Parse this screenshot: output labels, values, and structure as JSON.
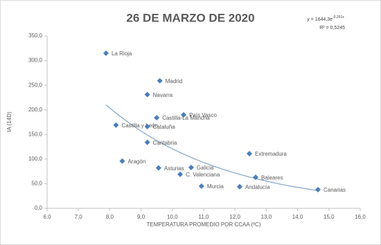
{
  "chart_data": {
    "type": "scatter",
    "title": "26 DE MARZO DE 2020",
    "x_label": "TEMPERATURA  PROMEDIO POR CCAA (ºC)",
    "y_label": "IA (14D)",
    "xlim": [
      6,
      16
    ],
    "ylim": [
      0,
      350
    ],
    "xticks": [
      {
        "value": 6,
        "label": "6,0"
      },
      {
        "value": 7,
        "label": "7,0"
      },
      {
        "value": 8,
        "label": "8,0"
      },
      {
        "value": 9,
        "label": "9,0"
      },
      {
        "value": 10,
        "label": "10,0"
      },
      {
        "value": 11,
        "label": "11,0"
      },
      {
        "value": 12,
        "label": "12,0"
      },
      {
        "value": 13,
        "label": "13,0"
      },
      {
        "value": 14,
        "label": "14,0"
      },
      {
        "value": 15,
        "label": "15,0"
      },
      {
        "value": 16,
        "label": "16,0"
      }
    ],
    "yticks": [
      {
        "value": 0,
        "label": "0,0"
      },
      {
        "value": 50,
        "label": "50,0"
      },
      {
        "value": 100,
        "label": "100,0"
      },
      {
        "value": 150,
        "label": "150,0"
      },
      {
        "value": 200,
        "label": "200,0"
      },
      {
        "value": 250,
        "label": "250,0"
      },
      {
        "value": 300,
        "label": "300,0"
      },
      {
        "value": 350,
        "label": "350,0"
      }
    ],
    "series": [
      {
        "color": "#4a7ebb",
        "x": [
          7.88,
          9.6,
          9.2,
          10.36,
          9.5,
          8.2,
          9.2,
          9.2,
          12.46,
          8.4,
          9.56,
          10.6,
          10.25,
          12.66,
          10.93,
          12.15,
          14.65
        ],
        "values": [
          315,
          259,
          231,
          190,
          184,
          169,
          166,
          134,
          111,
          96,
          82,
          83,
          69,
          63,
          45,
          44,
          38
        ],
        "labels": [
          "La Rioja",
          "Madrid",
          "Navarra",
          "País Vasco",
          "Castilla-La Mancha",
          "Castilla y León",
          "Cataluña",
          "Cantabria",
          "Extremadura",
          "Aragón",
          "Asturias",
          "Galicia",
          "C. Valenciana",
          "Baleares",
          "Murcia",
          "Andalucía",
          "Canarias"
        ]
      }
    ],
    "trendline": {
      "color": "#7fa3c8",
      "a": 1644.3,
      "b": -0.261,
      "equation": "y = 1644,3e",
      "exponent": "-0,261x",
      "r2": "R² = 0,5245"
    }
  }
}
